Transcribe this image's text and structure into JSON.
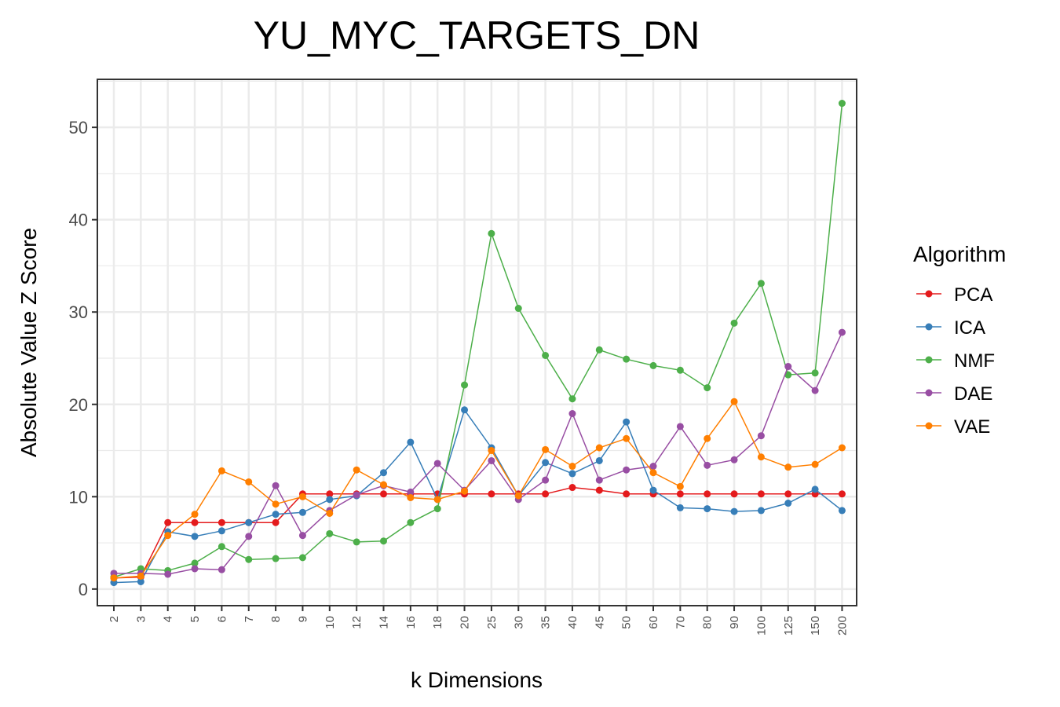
{
  "chart_data": {
    "type": "line",
    "title": "YU_MYC_TARGETS_DN",
    "xlabel": "k Dimensions",
    "ylabel": "Absolute Value Z Score",
    "categories": [
      "2",
      "3",
      "4",
      "5",
      "6",
      "7",
      "8",
      "9",
      "10",
      "12",
      "14",
      "16",
      "18",
      "20",
      "25",
      "30",
      "35",
      "40",
      "45",
      "50",
      "60",
      "70",
      "80",
      "90",
      "100",
      "125",
      "150",
      "200"
    ],
    "y_ticks": [
      "0",
      "10",
      "20",
      "30",
      "40",
      "50"
    ],
    "ylim": [
      -1.8,
      55.2
    ],
    "grid": true,
    "legend_title": "Algorithm",
    "legend_position": "right",
    "series": [
      {
        "name": "PCA",
        "color": "#e41a1c",
        "values": [
          1.2,
          1.3,
          7.2,
          7.2,
          7.2,
          7.2,
          7.2,
          10.3,
          10.3,
          10.3,
          10.3,
          10.3,
          10.3,
          10.3,
          10.3,
          10.3,
          10.3,
          11.0,
          10.7,
          10.3,
          10.3,
          10.3,
          10.3,
          10.3,
          10.3,
          10.3,
          10.3,
          10.3
        ]
      },
      {
        "name": "ICA",
        "color": "#377eb8",
        "values": [
          0.7,
          0.8,
          6.2,
          5.7,
          6.3,
          7.2,
          8.1,
          8.3,
          9.7,
          10.1,
          12.6,
          15.9,
          9.7,
          19.4,
          15.3,
          10.1,
          13.7,
          12.5,
          13.9,
          18.1,
          10.7,
          8.8,
          8.7,
          8.4,
          8.5,
          9.3,
          10.8,
          8.5
        ]
      },
      {
        "name": "NMF",
        "color": "#4daf4a",
        "values": [
          1.3,
          2.2,
          2.0,
          2.8,
          4.6,
          3.2,
          3.3,
          3.4,
          6.0,
          5.1,
          5.2,
          7.2,
          8.7,
          22.1,
          38.5,
          30.4,
          25.3,
          20.6,
          25.9,
          24.9,
          24.2,
          23.7,
          21.8,
          28.8,
          33.1,
          23.2,
          23.4,
          52.6
        ]
      },
      {
        "name": "DAE",
        "color": "#984ea3",
        "values": [
          1.7,
          1.7,
          1.6,
          2.2,
          2.1,
          5.7,
          11.2,
          5.8,
          8.5,
          10.2,
          11.2,
          10.5,
          13.6,
          10.7,
          13.9,
          9.7,
          11.8,
          19.0,
          11.8,
          12.9,
          13.3,
          17.6,
          13.4,
          14.0,
          16.6,
          24.1,
          21.5,
          27.8
        ]
      },
      {
        "name": "VAE",
        "color": "#ff7f00",
        "values": [
          1.2,
          1.4,
          5.8,
          8.1,
          12.8,
          11.6,
          9.2,
          10.0,
          8.2,
          12.9,
          11.3,
          9.9,
          9.7,
          10.6,
          15.0,
          10.1,
          15.1,
          13.3,
          15.3,
          16.3,
          12.6,
          11.1,
          16.3,
          20.3,
          14.3,
          13.2,
          13.5,
          15.3
        ]
      }
    ]
  }
}
